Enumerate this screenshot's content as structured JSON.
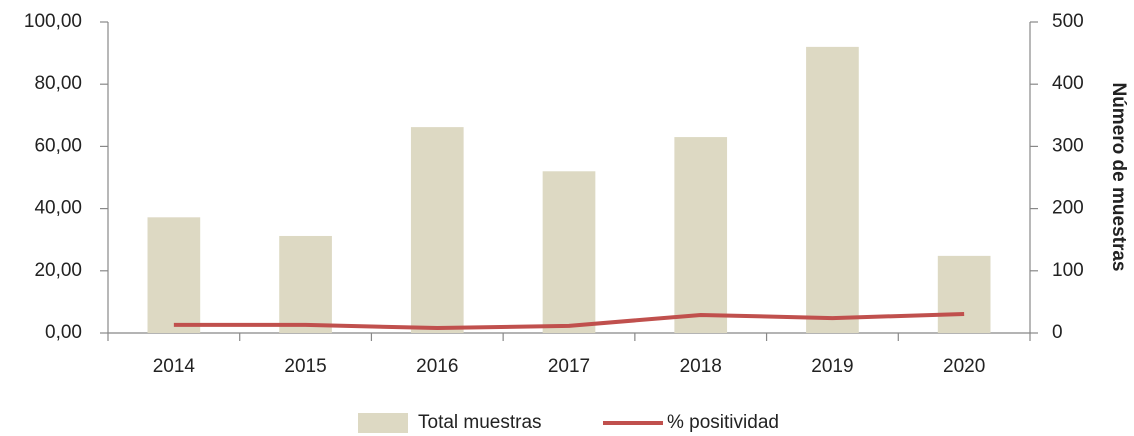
{
  "chart_data": {
    "type": "bar",
    "categories": [
      "2014",
      "2015",
      "2016",
      "2017",
      "2018",
      "2019",
      "2020"
    ],
    "series": [
      {
        "name": "Total muestras",
        "type": "bar",
        "axis": "y2",
        "color": "#ddd9c3",
        "values": [
          186,
          156,
          331,
          260,
          315,
          460,
          124
        ]
      },
      {
        "name": "% positividad",
        "type": "line",
        "axis": "y",
        "color": "#c0504d",
        "values": [
          2.6,
          2.6,
          1.6,
          2.3,
          5.8,
          4.8,
          6.1
        ]
      }
    ],
    "ylim": [
      0,
      100
    ],
    "yticks": [
      {
        "value": 0,
        "label": "0,00"
      },
      {
        "value": 20,
        "label": "20,00"
      },
      {
        "value": 40,
        "label": "40,00"
      },
      {
        "value": 60,
        "label": "60,00"
      },
      {
        "value": 80,
        "label": "80,00"
      },
      {
        "value": 100,
        "label": "100,00"
      }
    ],
    "y2lim": [
      0,
      500
    ],
    "y2ticks": [
      0,
      100,
      200,
      300,
      400,
      500
    ],
    "y2label": "Número de muestras",
    "grid": false,
    "legend": "bottom"
  }
}
